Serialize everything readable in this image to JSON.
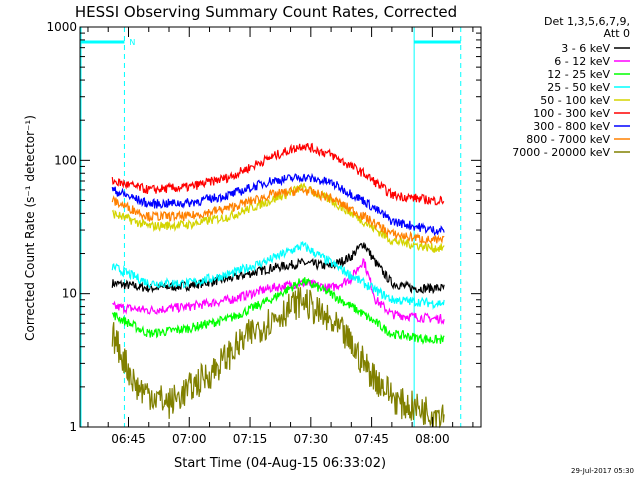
{
  "chart_data": {
    "type": "line",
    "title": "HESSI Observing Summary Count Rates, Corrected",
    "xlabel": "Start Time (04-Aug-15 06:33:02)",
    "ylabel": "Corrected Count Rate (s⁻¹ detector⁻¹)",
    "y_scale": "log",
    "ylim": [
      1,
      1000
    ],
    "xlim": [
      "06:33:02",
      "08:12:00"
    ],
    "x_ticks": [
      "06:45",
      "07:00",
      "07:15",
      "07:30",
      "07:45",
      "08:00"
    ],
    "y_ticks": [
      "1",
      "10",
      "100",
      "1000"
    ],
    "legend_header": [
      "Det 1,3,5,6,7,9,",
      "Att 0"
    ],
    "legend_placement": "right-outside",
    "grid": false,
    "footer_date": "29-Jul-2017 05:30",
    "night_flag": "N",
    "annotations": {
      "sunlight_bars": [
        [
          "06:33:02",
          "06:44:00"
        ],
        [
          "07:55:30",
          "08:07:00"
        ]
      ],
      "vertical_markers": [
        "06:44:00",
        "07:55:30",
        "08:07:00"
      ]
    },
    "series": [
      {
        "name": "3 - 6 keV",
        "color": "#000000",
        "points": [
          [
            "06:41",
            12
          ],
          [
            "06:50",
            11
          ],
          [
            "07:00",
            11.5
          ],
          [
            "07:10",
            13
          ],
          [
            "07:20",
            15.5
          ],
          [
            "07:28",
            17
          ],
          [
            "07:35",
            16
          ],
          [
            "07:40",
            19
          ],
          [
            "07:43",
            24
          ],
          [
            "07:46",
            17
          ],
          [
            "07:50",
            12
          ],
          [
            "07:55",
            11
          ],
          [
            "08:00",
            11
          ],
          [
            "08:03",
            11
          ]
        ]
      },
      {
        "name": "6 - 12 keV",
        "color": "#ff00ff",
        "points": [
          [
            "06:41",
            8
          ],
          [
            "06:50",
            7.5
          ],
          [
            "07:00",
            8
          ],
          [
            "07:10",
            9
          ],
          [
            "07:20",
            11
          ],
          [
            "07:28",
            12
          ],
          [
            "07:35",
            11
          ],
          [
            "07:40",
            13
          ],
          [
            "07:43",
            18
          ],
          [
            "07:46",
            9
          ],
          [
            "07:50",
            7
          ],
          [
            "08:00",
            6.5
          ],
          [
            "08:03",
            6.5
          ]
        ]
      },
      {
        "name": "12 - 25 keV",
        "color": "#00ff00",
        "points": [
          [
            "06:41",
            7
          ],
          [
            "06:50",
            5
          ],
          [
            "07:00",
            5.5
          ],
          [
            "07:10",
            6.5
          ],
          [
            "07:20",
            9
          ],
          [
            "07:28",
            12.5
          ],
          [
            "07:35",
            10
          ],
          [
            "07:43",
            7
          ],
          [
            "07:50",
            5
          ],
          [
            "08:00",
            4.5
          ],
          [
            "08:03",
            4.5
          ]
        ]
      },
      {
        "name": "25 - 50 keV",
        "color": "#00ffff",
        "points": [
          [
            "06:41",
            16
          ],
          [
            "06:50",
            12
          ],
          [
            "07:00",
            12
          ],
          [
            "07:10",
            14
          ],
          [
            "07:20",
            18
          ],
          [
            "07:28",
            23
          ],
          [
            "07:35",
            17
          ],
          [
            "07:43",
            12
          ],
          [
            "07:50",
            9
          ],
          [
            "08:00",
            8.5
          ],
          [
            "08:03",
            8.5
          ]
        ]
      },
      {
        "name": "50 - 100 keV",
        "color": "#d4d400",
        "points": [
          [
            "06:41",
            40
          ],
          [
            "06:50",
            32
          ],
          [
            "07:00",
            33
          ],
          [
            "07:10",
            38
          ],
          [
            "07:20",
            50
          ],
          [
            "07:28",
            63
          ],
          [
            "07:35",
            50
          ],
          [
            "07:43",
            35
          ],
          [
            "07:50",
            25
          ],
          [
            "08:00",
            22
          ],
          [
            "08:03",
            22
          ]
        ]
      },
      {
        "name": "100 - 300 keV",
        "color": "#ff0000",
        "points": [
          [
            "06:41",
            70
          ],
          [
            "06:50",
            60
          ],
          [
            "07:00",
            63
          ],
          [
            "07:10",
            75
          ],
          [
            "07:20",
            105
          ],
          [
            "07:28",
            130
          ],
          [
            "07:35",
            110
          ],
          [
            "07:43",
            80
          ],
          [
            "07:50",
            55
          ],
          [
            "08:00",
            50
          ],
          [
            "08:03",
            50
          ]
        ]
      },
      {
        "name": "300 - 800 keV",
        "color": "#0000ff",
        "points": [
          [
            "06:41",
            60
          ],
          [
            "06:50",
            47
          ],
          [
            "07:00",
            48
          ],
          [
            "07:10",
            55
          ],
          [
            "07:20",
            70
          ],
          [
            "07:28",
            75
          ],
          [
            "07:35",
            68
          ],
          [
            "07:43",
            50
          ],
          [
            "07:50",
            35
          ],
          [
            "08:00",
            30
          ],
          [
            "08:03",
            30
          ]
        ]
      },
      {
        "name": "800 - 7000 keV",
        "color": "#ff8000",
        "points": [
          [
            "06:41",
            50
          ],
          [
            "06:50",
            38
          ],
          [
            "07:00",
            38
          ],
          [
            "07:10",
            44
          ],
          [
            "07:20",
            55
          ],
          [
            "07:28",
            60
          ],
          [
            "07:35",
            52
          ],
          [
            "07:43",
            38
          ],
          [
            "07:50",
            28
          ],
          [
            "08:00",
            25
          ],
          [
            "08:03",
            25
          ]
        ]
      },
      {
        "name": "7000 - 20000 keV",
        "color": "#808000",
        "points": [
          [
            "06:41",
            5
          ],
          [
            "06:47",
            2
          ],
          [
            "06:55",
            1.5
          ],
          [
            "07:05",
            2.5
          ],
          [
            "07:15",
            5
          ],
          [
            "07:28",
            9
          ],
          [
            "07:38",
            5
          ],
          [
            "07:45",
            2.5
          ],
          [
            "07:52",
            1.5
          ],
          [
            "08:00",
            1.3
          ],
          [
            "08:03",
            1.3
          ]
        ]
      }
    ]
  }
}
